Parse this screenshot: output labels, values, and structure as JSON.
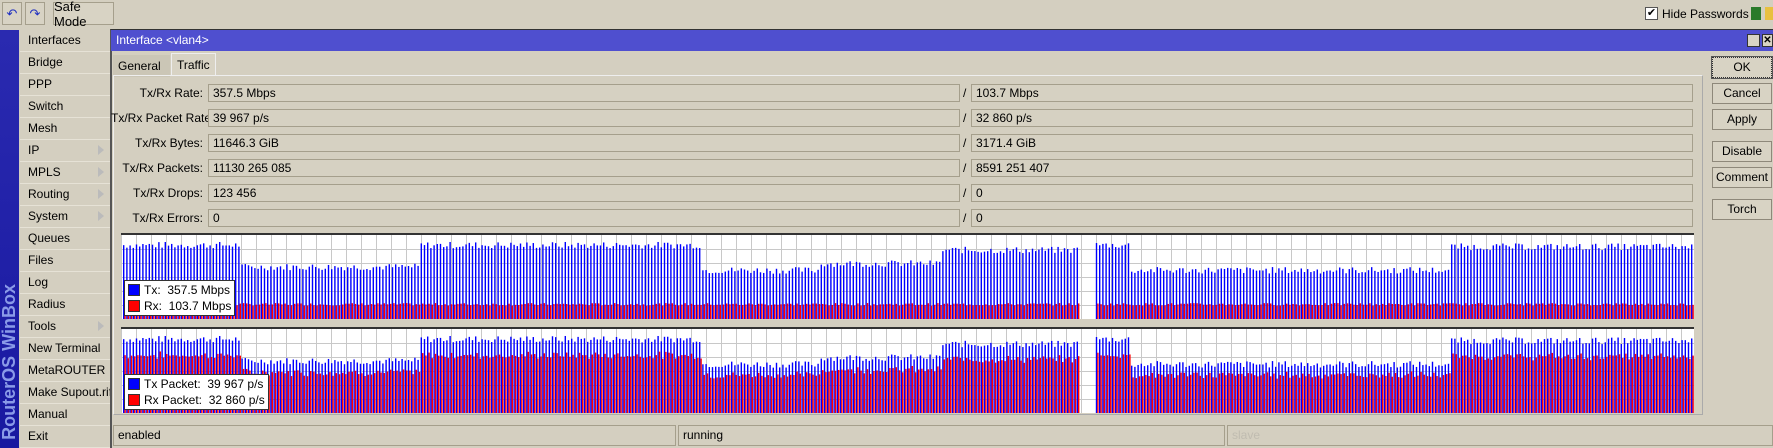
{
  "toolbar": {
    "undo_icon": "undo-icon",
    "redo_icon": "redo-icon",
    "safe_mode": "Safe Mode",
    "hide_passwords": "Hide Passwords",
    "hide_passwords_checked": true
  },
  "brand": "RouterOS WinBox",
  "menu": [
    {
      "label": "Interfaces"
    },
    {
      "label": "Bridge"
    },
    {
      "label": "PPP"
    },
    {
      "label": "Switch"
    },
    {
      "label": "Mesh"
    },
    {
      "label": "IP",
      "sub": true
    },
    {
      "label": "MPLS",
      "sub": true
    },
    {
      "label": "Routing",
      "sub": true
    },
    {
      "label": "System",
      "sub": true
    },
    {
      "label": "Queues"
    },
    {
      "label": "Files"
    },
    {
      "label": "Log"
    },
    {
      "label": "Radius"
    },
    {
      "label": "Tools",
      "sub": true
    },
    {
      "label": "New Terminal"
    },
    {
      "label": "MetaROUTER"
    },
    {
      "label": "Make Supout.rif"
    },
    {
      "label": "Manual"
    },
    {
      "label": "Exit"
    }
  ],
  "window": {
    "title": "Interface <vlan4>",
    "tabs": [
      "General",
      "Traffic"
    ],
    "active_tab": "Traffic"
  },
  "fields": [
    {
      "label": "Tx/Rx Rate:",
      "tx": "357.5 Mbps",
      "rx": "103.7 Mbps"
    },
    {
      "label": "Tx/Rx Packet Rate:",
      "tx": "39 967 p/s",
      "rx": "32 860 p/s"
    },
    {
      "label": "Tx/Rx Bytes:",
      "tx": "11646.3 GiB",
      "rx": "3171.4 GiB"
    },
    {
      "label": "Tx/Rx Packets:",
      "tx": "11130 265 085",
      "rx": "8591 251 407"
    },
    {
      "label": "Tx/Rx Drops:",
      "tx": "123 456",
      "rx": "0"
    },
    {
      "label": "Tx/Rx Errors:",
      "tx": "0",
      "rx": "0"
    }
  ],
  "separator": "/",
  "buttons": [
    "OK",
    "Cancel",
    "Apply",
    "Disable",
    "Comment",
    "Torch"
  ],
  "charts": {
    "rate": {
      "tx_label": "Tx:",
      "tx_value": "357.5 Mbps",
      "rx_label": "Rx:",
      "rx_value": "103.7 Mbps"
    },
    "packet": {
      "tx_label": "Tx Packet:",
      "tx_value": "39 967 p/s",
      "rx_label": "Rx Packet:",
      "rx_value": "32 860 p/s"
    },
    "colors": {
      "tx": "#0000ff",
      "rx": "#ff0000",
      "grid": "#c8c8c8"
    }
  },
  "status": [
    "enabled",
    "running",
    "slave"
  ]
}
